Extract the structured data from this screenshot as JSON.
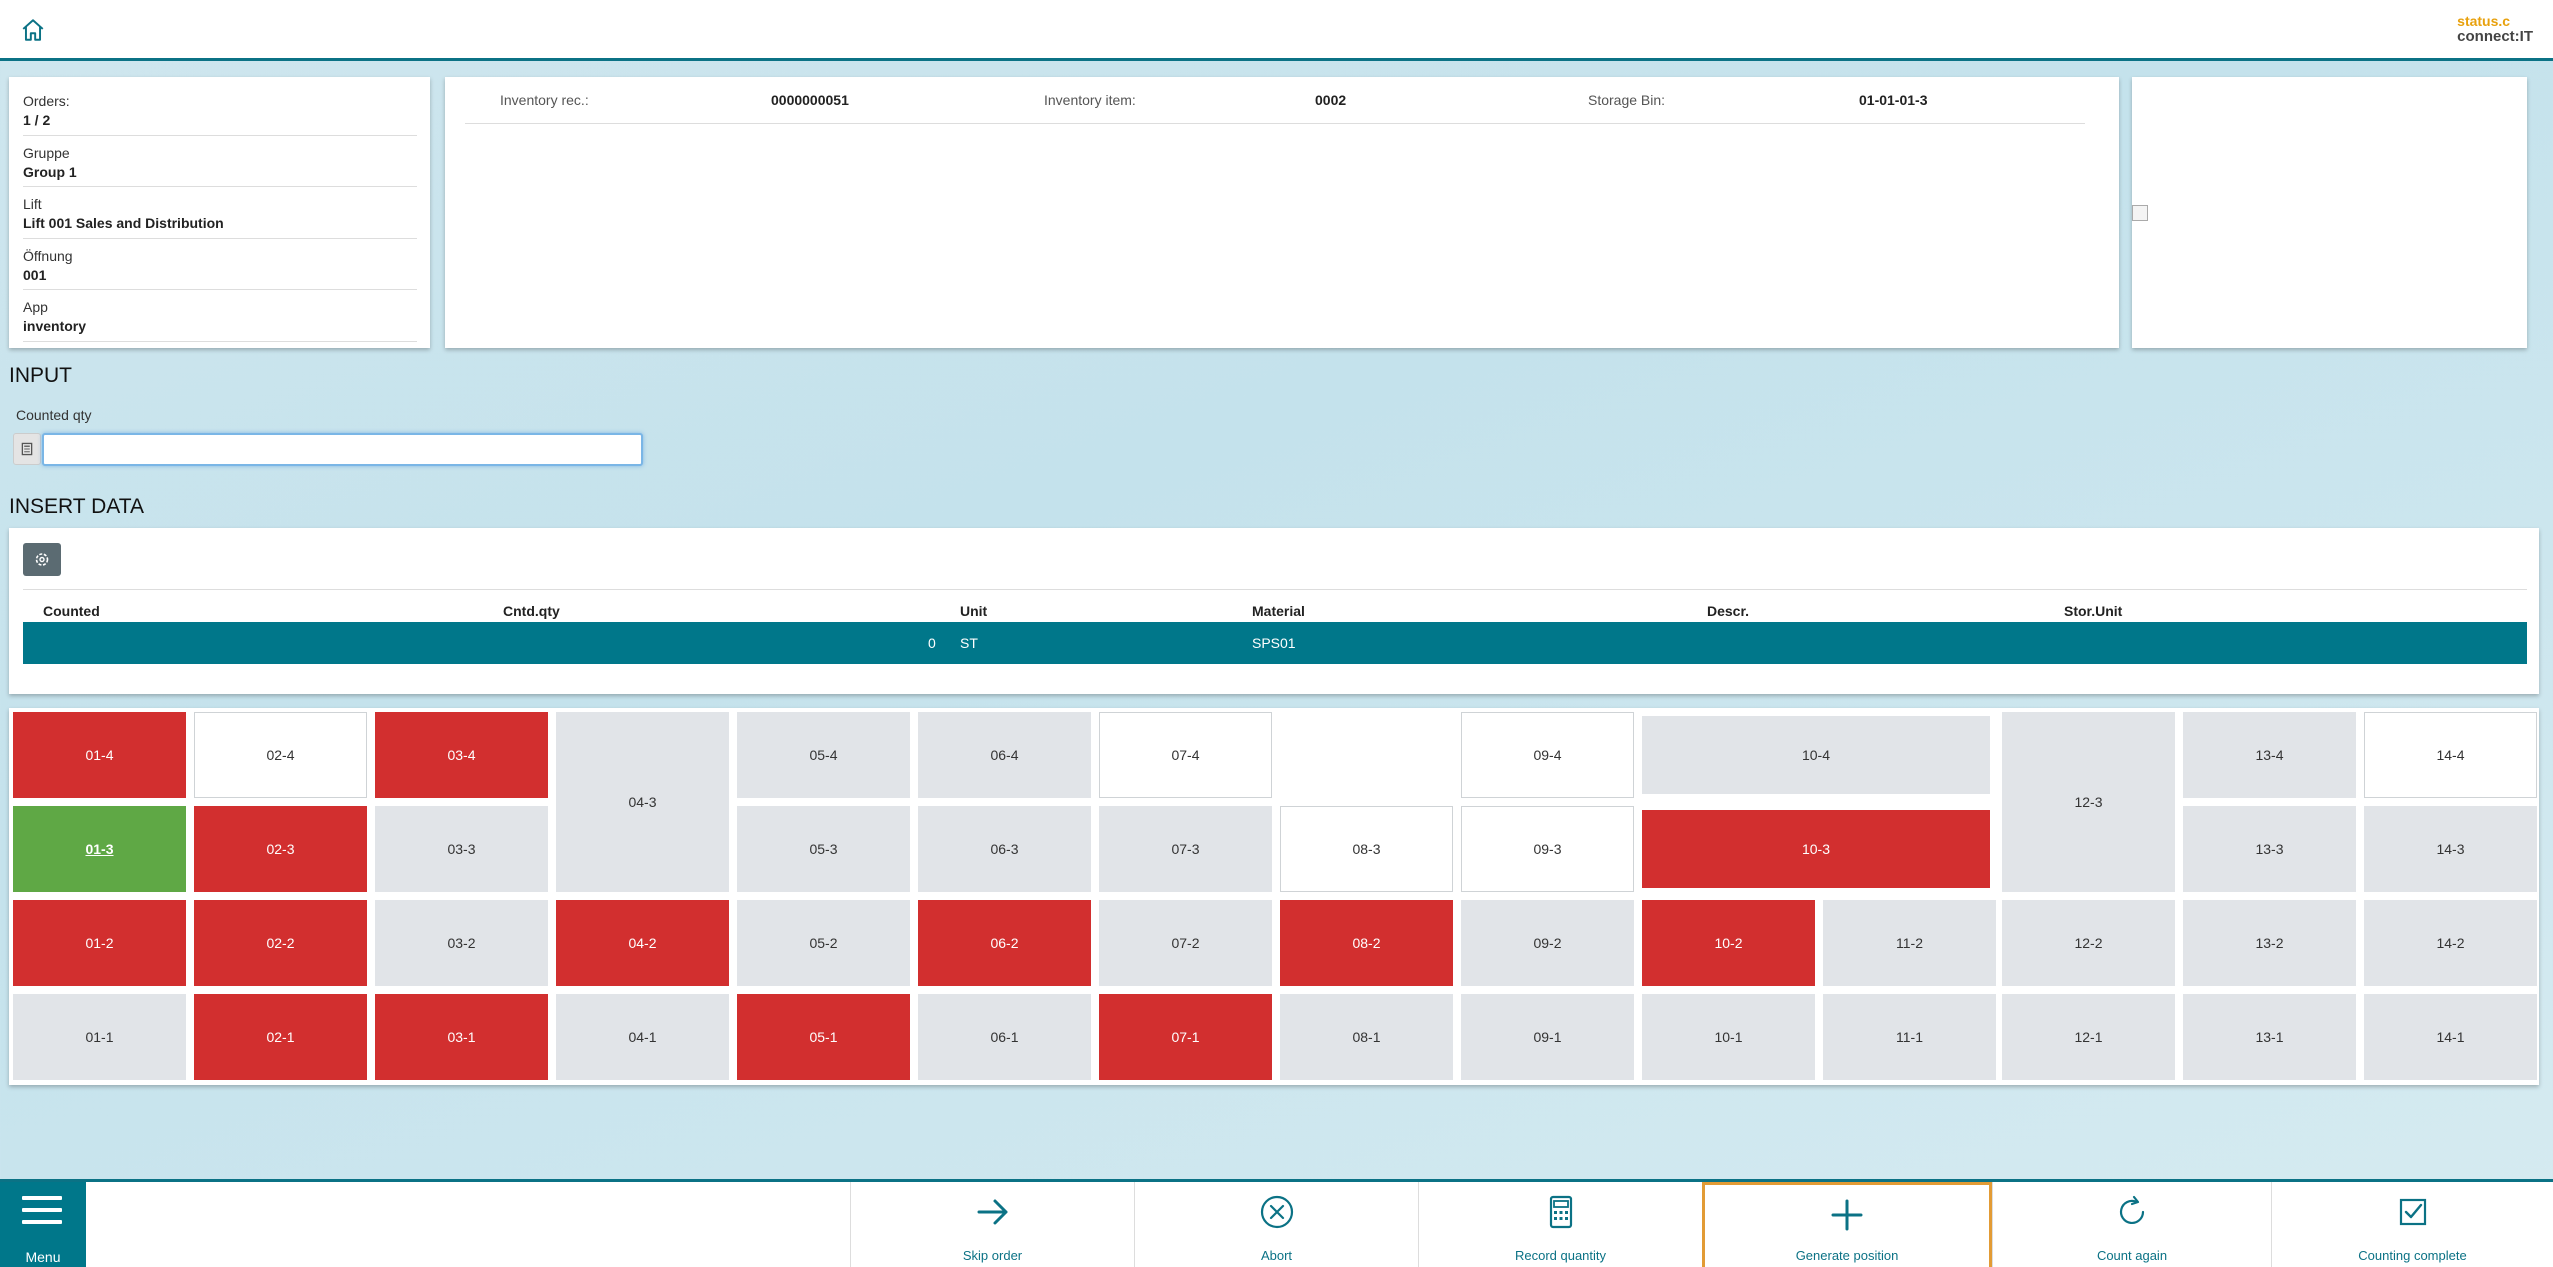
{
  "header": {
    "home_icon": "home-icon",
    "logo_line1": "status.c",
    "logo_line2": "connect:IT"
  },
  "info": {
    "rows": [
      {
        "label": "Orders:",
        "value": "1 / 2"
      },
      {
        "label": "Gruppe",
        "value": "Group 1"
      },
      {
        "label": "Lift",
        "value": "Lift 001 Sales and Distribution"
      },
      {
        "label": "Öffnung",
        "value": "001"
      },
      {
        "label": "App",
        "value": "inventory"
      }
    ]
  },
  "record": {
    "inventory_rec_label": "Inventory rec.:",
    "inventory_rec_value": "0000000051",
    "inventory_item_label": "Inventory item:",
    "inventory_item_value": "0002",
    "storage_bin_label": "Storage Bin:",
    "storage_bin_value": "01-01-01-3"
  },
  "input": {
    "title": "INPUT",
    "counted_qty_label": "Counted qty",
    "counted_qty_value": "",
    "calc_icon": "calculator-icon"
  },
  "insert": {
    "title": "INSERT DATA",
    "settings_icon": "gear-icon",
    "columns": [
      "Counted",
      "Cntd.qty",
      "Unit",
      "Material",
      "Descr.",
      "Stor.Unit"
    ],
    "row": {
      "counted": "",
      "cntd_qty": "0",
      "unit": "ST",
      "material": "SPS01",
      "descr": "",
      "stor_unit": ""
    }
  },
  "grid": {
    "colors": {
      "grey": "#e1e4e8",
      "white": "#ffffff",
      "red": "#d22f2f",
      "green": "#5fa845"
    },
    "cells": [
      {
        "label": "01-4",
        "state": "red"
      },
      {
        "label": "02-4",
        "state": "white"
      },
      {
        "label": "03-4",
        "state": "red"
      },
      {
        "label": "04-3",
        "state": "grey"
      },
      {
        "label": "05-4",
        "state": "grey"
      },
      {
        "label": "06-4",
        "state": "grey"
      },
      {
        "label": "07-4",
        "state": "white"
      },
      {
        "label": "",
        "state": "blank"
      },
      {
        "label": "09-4",
        "state": "white"
      },
      {
        "label": "10-4",
        "state": "grey"
      },
      {
        "label": "12-3",
        "state": "grey"
      },
      {
        "label": "13-4",
        "state": "grey"
      },
      {
        "label": "14-4",
        "state": "white"
      },
      {
        "label": "01-3",
        "state": "green"
      },
      {
        "label": "02-3",
        "state": "red"
      },
      {
        "label": "03-3",
        "state": "grey"
      },
      {
        "label": "05-3",
        "state": "grey"
      },
      {
        "label": "06-3",
        "state": "grey"
      },
      {
        "label": "07-3",
        "state": "grey"
      },
      {
        "label": "08-3",
        "state": "white"
      },
      {
        "label": "09-3",
        "state": "white"
      },
      {
        "label": "10-3",
        "state": "red"
      },
      {
        "label": "13-3",
        "state": "grey"
      },
      {
        "label": "14-3",
        "state": "grey"
      },
      {
        "label": "01-2",
        "state": "red"
      },
      {
        "label": "02-2",
        "state": "red"
      },
      {
        "label": "03-2",
        "state": "grey"
      },
      {
        "label": "04-2",
        "state": "red"
      },
      {
        "label": "05-2",
        "state": "grey"
      },
      {
        "label": "06-2",
        "state": "red"
      },
      {
        "label": "07-2",
        "state": "grey"
      },
      {
        "label": "08-2",
        "state": "red"
      },
      {
        "label": "09-2",
        "state": "grey"
      },
      {
        "label": "10-2",
        "state": "red"
      },
      {
        "label": "11-2",
        "state": "grey"
      },
      {
        "label": "12-2",
        "state": "grey"
      },
      {
        "label": "13-2",
        "state": "grey"
      },
      {
        "label": "14-2",
        "state": "grey"
      },
      {
        "label": "01-1",
        "state": "grey"
      },
      {
        "label": "02-1",
        "state": "red"
      },
      {
        "label": "03-1",
        "state": "red"
      },
      {
        "label": "04-1",
        "state": "grey"
      },
      {
        "label": "05-1",
        "state": "red"
      },
      {
        "label": "06-1",
        "state": "grey"
      },
      {
        "label": "07-1",
        "state": "red"
      },
      {
        "label": "08-1",
        "state": "grey"
      },
      {
        "label": "09-1",
        "state": "grey"
      },
      {
        "label": "10-1",
        "state": "grey"
      },
      {
        "label": "11-1",
        "state": "grey"
      },
      {
        "label": "12-1",
        "state": "grey"
      },
      {
        "label": "13-1",
        "state": "grey"
      },
      {
        "label": "14-1",
        "state": "grey"
      }
    ]
  },
  "footer": {
    "menu_label": "Menu",
    "menu_icon": "hamburger-icon",
    "actions": [
      {
        "label": "Skip order",
        "icon": "arrow-right-icon"
      },
      {
        "label": "Abort",
        "icon": "close-circle-icon"
      },
      {
        "label": "Record quantity",
        "icon": "calculator-icon"
      },
      {
        "label": "Generate position",
        "icon": "plus-icon"
      },
      {
        "label": "Count again",
        "icon": "refresh-icon"
      },
      {
        "label": "Counting complete",
        "icon": "checkbox-icon"
      }
    ],
    "accent_color": "#0b7285",
    "focus_color": "#e29b35"
  }
}
